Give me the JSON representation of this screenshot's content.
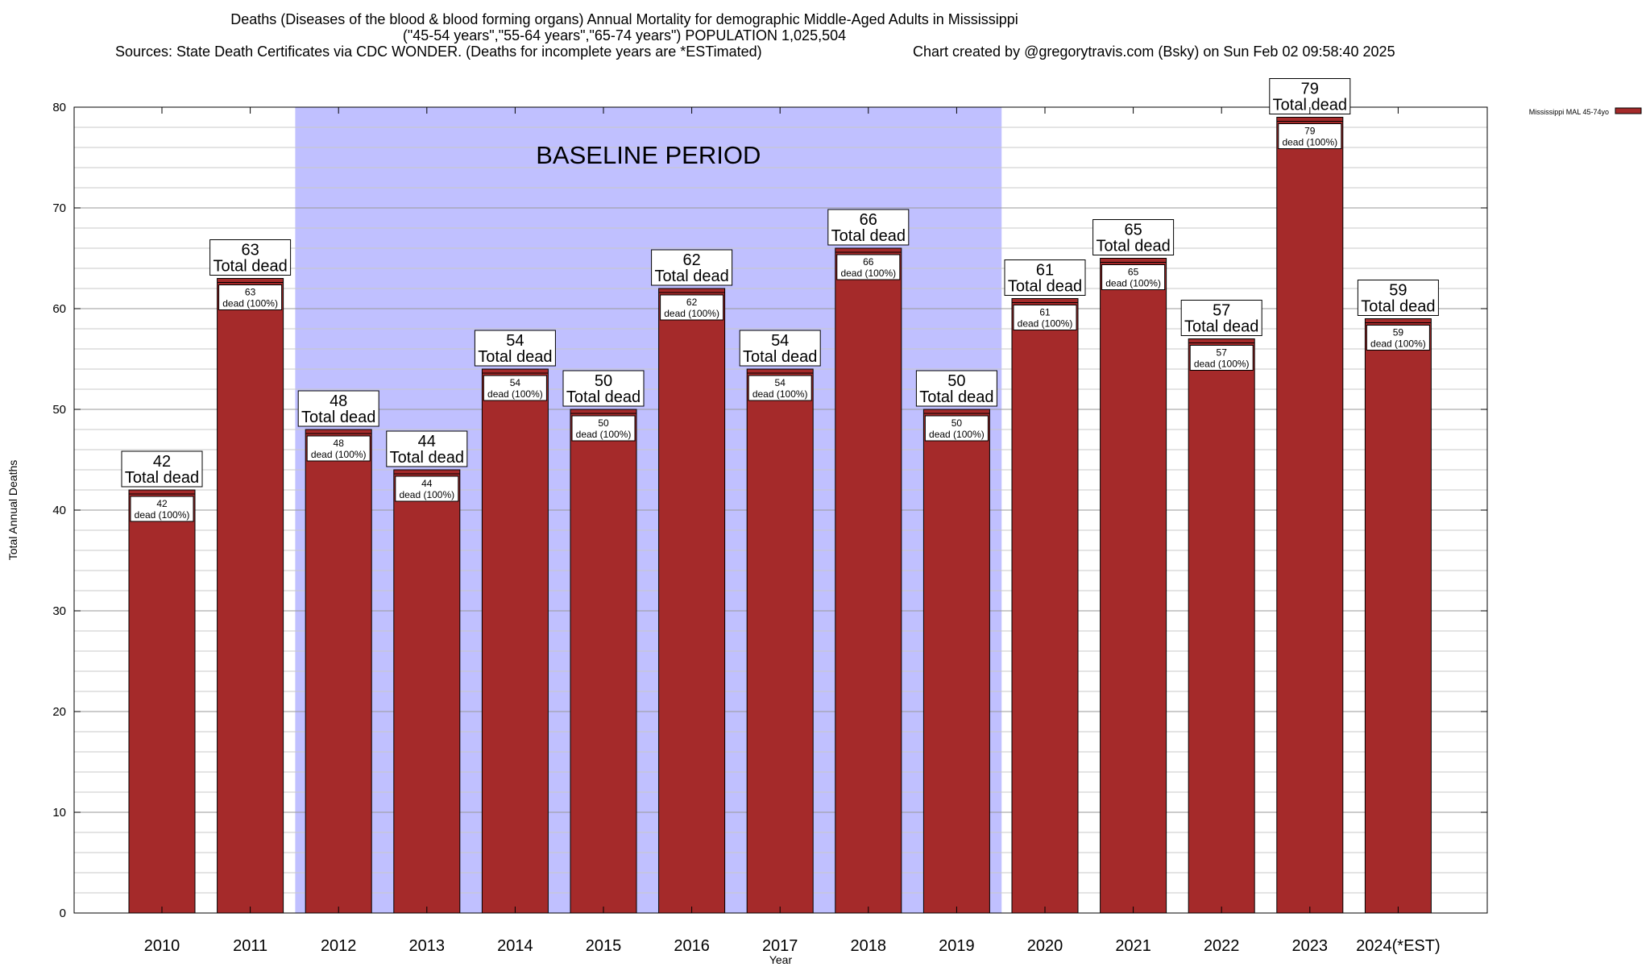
{
  "header": {
    "title_line1": "Deaths (Diseases of the blood & blood forming organs) Annual Mortality for demographic Middle-Aged Adults in Mississippi",
    "title_line2": "(\"45-54 years\",\"55-64 years\",\"65-74 years\") POPULATION 1,025,504",
    "sources": "Sources: State Death Certificates via CDC WONDER. (Deaths for incomplete years are *ESTimated)",
    "credit": "Chart created by @gregorytravis.com (Bsky) on Sun Feb 02 09:58:40 2025"
  },
  "chart_data": {
    "type": "bar",
    "xlabel": "Year",
    "ylabel": "Total Annual Deaths",
    "ylim": [
      0,
      80
    ],
    "yticks": [
      0,
      10,
      20,
      30,
      40,
      50,
      60,
      70,
      80
    ],
    "grid": true,
    "categories": [
      "2010",
      "2011",
      "2012",
      "2013",
      "2014",
      "2015",
      "2016",
      "2017",
      "2018",
      "2019",
      "2020",
      "2021",
      "2022",
      "2023",
      "2024(*EST)"
    ],
    "series": [
      {
        "name": "Mississippi MAL 45-74yo",
        "color": "#a52a2a",
        "values": [
          42,
          63,
          48,
          44,
          54,
          50,
          62,
          54,
          66,
          50,
          61,
          65,
          57,
          79,
          59
        ]
      }
    ],
    "total_label_suffix": "Total dead",
    "inner_label_suffix": "dead (100%)",
    "shaded_region": {
      "label": "BASELINE PERIOD",
      "from_category": "2012",
      "to_category": "2019",
      "color": "#c0c0ff"
    },
    "legend_position": "top-right"
  }
}
